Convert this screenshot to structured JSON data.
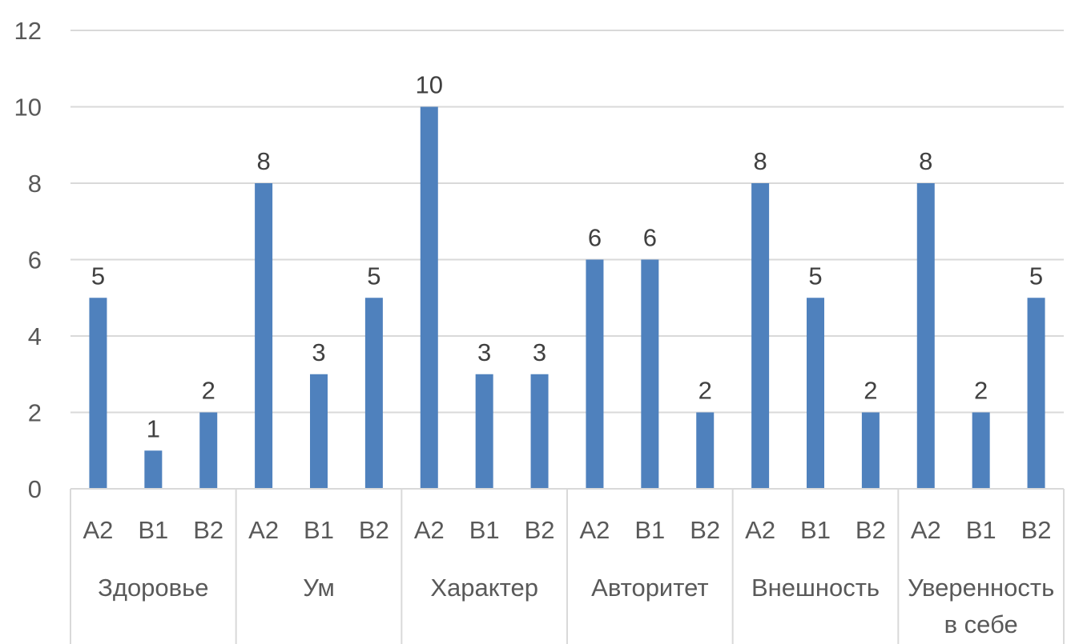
{
  "chart_data": {
    "type": "bar",
    "groups": [
      {
        "label": [
          "Здоровье"
        ],
        "subcategories": [
          "A2",
          "B1",
          "B2"
        ],
        "values": [
          5,
          1,
          2
        ]
      },
      {
        "label": [
          "Ум"
        ],
        "subcategories": [
          "A2",
          "B1",
          "B2"
        ],
        "values": [
          8,
          3,
          5
        ]
      },
      {
        "label": [
          "Характер"
        ],
        "subcategories": [
          "A2",
          "B1",
          "B2"
        ],
        "values": [
          10,
          3,
          3
        ]
      },
      {
        "label": [
          "Авторитет"
        ],
        "subcategories": [
          "A2",
          "B1",
          "B2"
        ],
        "values": [
          6,
          6,
          2
        ]
      },
      {
        "label": [
          "Внешность"
        ],
        "subcategories": [
          "A2",
          "B1",
          "B2"
        ],
        "values": [
          8,
          5,
          2
        ]
      },
      {
        "label": [
          "Уверенность",
          "в себе"
        ],
        "subcategories": [
          "A2",
          "B1",
          "B2"
        ],
        "values": [
          8,
          2,
          5
        ]
      }
    ],
    "ylim": [
      0,
      12
    ],
    "yticks": [
      0,
      2,
      4,
      6,
      8,
      10,
      12
    ],
    "grid": true,
    "data_labels": true,
    "legend": "none",
    "bar_color": "#4f81bd",
    "grid_color": "#d9d9d9",
    "text_color": "#595959"
  }
}
